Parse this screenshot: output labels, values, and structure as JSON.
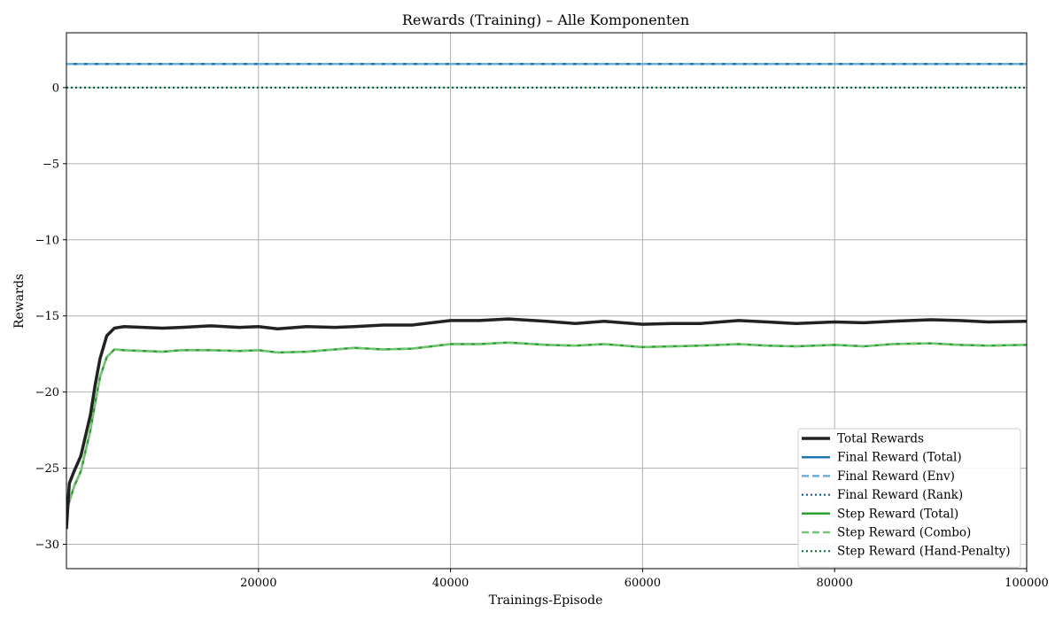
{
  "chart_data": {
    "type": "line",
    "title": "Rewards (Training) – Alle Komponenten",
    "xlabel": "Trainings-Episode",
    "ylabel": "Rewards",
    "xlim": [
      0,
      100000
    ],
    "ylim": [
      -31.6,
      3.6
    ],
    "x_ticks": [
      20000,
      40000,
      60000,
      80000,
      100000
    ],
    "y_ticks": [
      0,
      -5,
      -10,
      -15,
      -20,
      -25,
      -30
    ],
    "y_tick_labels": [
      "0",
      "−5",
      "−10",
      "−15",
      "−20",
      "−25",
      "−30"
    ],
    "grid": true,
    "legend_position": "lower-right",
    "series": [
      {
        "name": "Total Rewards",
        "color": "#222222",
        "style": "solid",
        "width": 3.5,
        "points": [
          [
            0,
            -29
          ],
          [
            300,
            -26
          ],
          [
            800,
            -25.2
          ],
          [
            1500,
            -24.2
          ],
          [
            2500,
            -21.5
          ],
          [
            3000,
            -19.5
          ],
          [
            3500,
            -17.8
          ],
          [
            4200,
            -16.3
          ],
          [
            5000,
            -15.8
          ],
          [
            6000,
            -15.7
          ],
          [
            8000,
            -15.75
          ],
          [
            10000,
            -15.8
          ],
          [
            12000,
            -15.75
          ],
          [
            15000,
            -15.65
          ],
          [
            18000,
            -15.75
          ],
          [
            20000,
            -15.7
          ],
          [
            22000,
            -15.85
          ],
          [
            25000,
            -15.7
          ],
          [
            28000,
            -15.75
          ],
          [
            30000,
            -15.7
          ],
          [
            33000,
            -15.6
          ],
          [
            36000,
            -15.6
          ],
          [
            40000,
            -15.3
          ],
          [
            43000,
            -15.3
          ],
          [
            46000,
            -15.2
          ],
          [
            50000,
            -15.35
          ],
          [
            53000,
            -15.5
          ],
          [
            56000,
            -15.35
          ],
          [
            60000,
            -15.55
          ],
          [
            63000,
            -15.5
          ],
          [
            66000,
            -15.5
          ],
          [
            70000,
            -15.3
          ],
          [
            73000,
            -15.4
          ],
          [
            76000,
            -15.5
          ],
          [
            80000,
            -15.4
          ],
          [
            83000,
            -15.45
          ],
          [
            86000,
            -15.35
          ],
          [
            90000,
            -15.25
          ],
          [
            93000,
            -15.3
          ],
          [
            96000,
            -15.4
          ],
          [
            100000,
            -15.35
          ]
        ]
      },
      {
        "name": "Final Reward (Total)",
        "color": "#1f77b4",
        "style": "solid",
        "width": 2.5,
        "points": [
          [
            0,
            1.55
          ],
          [
            100000,
            1.55
          ]
        ]
      },
      {
        "name": "Final Reward (Env)",
        "color": "#6baed6",
        "style": "dashed",
        "width": 2.5,
        "points": [
          [
            0,
            1.55
          ],
          [
            100000,
            1.55
          ]
        ]
      },
      {
        "name": "Final Reward (Rank)",
        "color": "#08519c",
        "style": "dotted",
        "width": 2,
        "points": [
          [
            0,
            0
          ],
          [
            100000,
            0
          ]
        ]
      },
      {
        "name": "Step Reward (Total)",
        "color": "#2ca02c",
        "style": "solid",
        "width": 2.5,
        "points": [
          [
            0,
            -27.8
          ],
          [
            300,
            -27.2
          ],
          [
            800,
            -26.2
          ],
          [
            1500,
            -25.2
          ],
          [
            2500,
            -22.5
          ],
          [
            3000,
            -20.7
          ],
          [
            3500,
            -19
          ],
          [
            4200,
            -17.7
          ],
          [
            5000,
            -17.2
          ],
          [
            6000,
            -17.25
          ],
          [
            8000,
            -17.3
          ],
          [
            10000,
            -17.35
          ],
          [
            12000,
            -17.25
          ],
          [
            15000,
            -17.25
          ],
          [
            18000,
            -17.3
          ],
          [
            20000,
            -17.25
          ],
          [
            22000,
            -17.4
          ],
          [
            25000,
            -17.35
          ],
          [
            28000,
            -17.2
          ],
          [
            30000,
            -17.1
          ],
          [
            33000,
            -17.2
          ],
          [
            36000,
            -17.15
          ],
          [
            40000,
            -16.85
          ],
          [
            43000,
            -16.85
          ],
          [
            46000,
            -16.75
          ],
          [
            50000,
            -16.9
          ],
          [
            53000,
            -16.95
          ],
          [
            56000,
            -16.85
          ],
          [
            60000,
            -17.05
          ],
          [
            63000,
            -17
          ],
          [
            66000,
            -16.95
          ],
          [
            70000,
            -16.85
          ],
          [
            73000,
            -16.95
          ],
          [
            76000,
            -17
          ],
          [
            80000,
            -16.9
          ],
          [
            83000,
            -17
          ],
          [
            86000,
            -16.85
          ],
          [
            90000,
            -16.8
          ],
          [
            93000,
            -16.9
          ],
          [
            96000,
            -16.95
          ],
          [
            100000,
            -16.9
          ]
        ]
      },
      {
        "name": "Step Reward (Combo)",
        "color": "#74c476",
        "style": "dashed",
        "width": 2.5,
        "points": [
          [
            0,
            -27.8
          ],
          [
            300,
            -27.2
          ],
          [
            800,
            -26.2
          ],
          [
            1500,
            -25.2
          ],
          [
            2500,
            -22.5
          ],
          [
            3000,
            -20.7
          ],
          [
            3500,
            -19
          ],
          [
            4200,
            -17.7
          ],
          [
            5000,
            -17.2
          ],
          [
            6000,
            -17.25
          ],
          [
            8000,
            -17.3
          ],
          [
            10000,
            -17.35
          ],
          [
            12000,
            -17.25
          ],
          [
            15000,
            -17.25
          ],
          [
            18000,
            -17.3
          ],
          [
            20000,
            -17.25
          ],
          [
            22000,
            -17.4
          ],
          [
            25000,
            -17.35
          ],
          [
            28000,
            -17.2
          ],
          [
            30000,
            -17.1
          ],
          [
            33000,
            -17.2
          ],
          [
            36000,
            -17.15
          ],
          [
            40000,
            -16.85
          ],
          [
            43000,
            -16.85
          ],
          [
            46000,
            -16.75
          ],
          [
            50000,
            -16.9
          ],
          [
            53000,
            -16.95
          ],
          [
            56000,
            -16.85
          ],
          [
            60000,
            -17.05
          ],
          [
            63000,
            -17
          ],
          [
            66000,
            -16.95
          ],
          [
            70000,
            -16.85
          ],
          [
            73000,
            -16.95
          ],
          [
            76000,
            -17
          ],
          [
            80000,
            -16.9
          ],
          [
            83000,
            -17
          ],
          [
            86000,
            -16.85
          ],
          [
            90000,
            -16.8
          ],
          [
            93000,
            -16.9
          ],
          [
            96000,
            -16.95
          ],
          [
            100000,
            -16.9
          ]
        ]
      },
      {
        "name": "Step Reward (Hand-Penalty)",
        "color": "#006d2c",
        "style": "dotted",
        "width": 2,
        "points": [
          [
            0,
            0
          ],
          [
            100000,
            0
          ]
        ]
      }
    ]
  }
}
